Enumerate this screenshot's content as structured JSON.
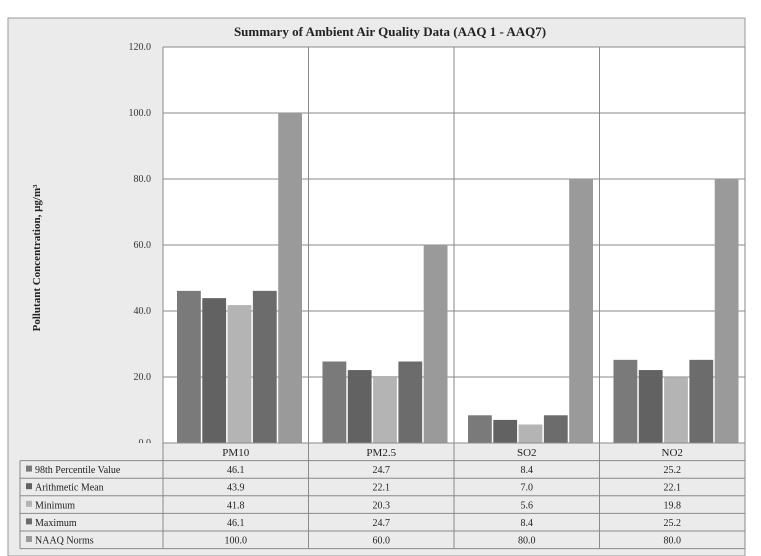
{
  "chart_data": {
    "type": "bar",
    "title": "Summary of Ambient Air Quality Data (AAQ 1 - AAQ7)",
    "ylabel": "Pollutant Concentration, µg/m³",
    "ylim": [
      0,
      120
    ],
    "yticks": [
      "0.0",
      "20.0",
      "40.0",
      "60.0",
      "80.0",
      "100.0",
      "120.0"
    ],
    "grid": true,
    "legend": "table-below",
    "categories": [
      "PM10",
      "PM2.5",
      "SO2",
      "NO2"
    ],
    "series": [
      {
        "name": "98th Percentile Value",
        "values": [
          46.1,
          24.7,
          8.4,
          25.2
        ],
        "labels": [
          "46.1",
          "24.7",
          "8.4",
          "25.2"
        ],
        "color": "#7a7a7a"
      },
      {
        "name": "Arithmetic Mean",
        "values": [
          43.9,
          22.1,
          7.0,
          22.1
        ],
        "labels": [
          "43.9",
          "22.1",
          "7.0",
          "22.1"
        ],
        "color": "#626262"
      },
      {
        "name": "Minimum",
        "values": [
          41.8,
          20.3,
          5.6,
          19.8
        ],
        "labels": [
          "41.8",
          "20.3",
          "5.6",
          "19.8"
        ],
        "color": "#b4b4b4"
      },
      {
        "name": "Maximum",
        "values": [
          46.1,
          24.7,
          8.4,
          25.2
        ],
        "labels": [
          "46.1",
          "24.7",
          "8.4",
          "25.2"
        ],
        "color": "#6c6c6c"
      },
      {
        "name": "NAAQ Norms",
        "values": [
          100.0,
          60.0,
          80.0,
          80.0
        ],
        "labels": [
          "100.0",
          "60.0",
          "80.0",
          "80.0"
        ],
        "color": "#9a9a9a"
      }
    ]
  }
}
